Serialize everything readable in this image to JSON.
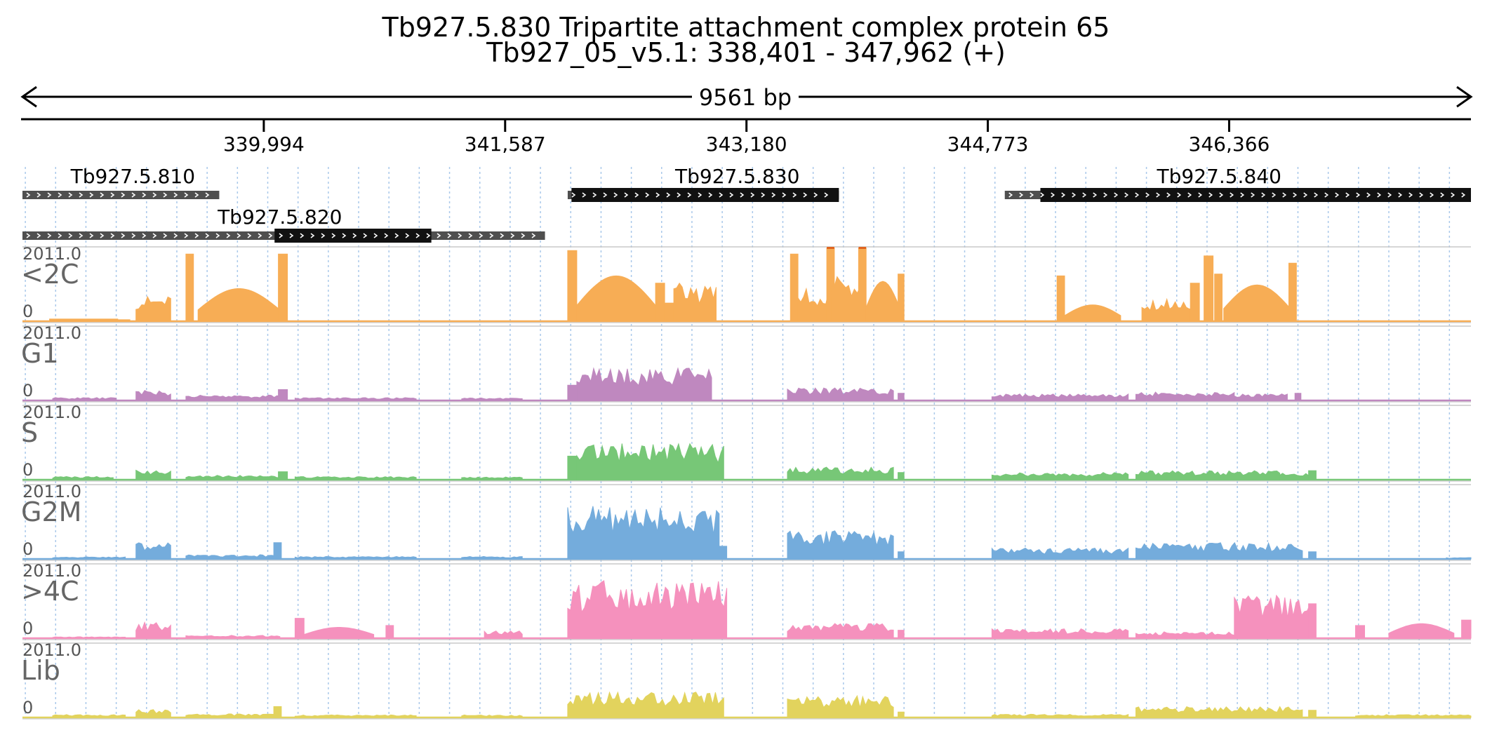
{
  "header": {
    "title": "Tb927.5.830  Tripartite attachment complex protein 65",
    "subtitle": "Tb927_05_v5.1: 338,401 - 347,962 (+)",
    "span_label": "9561 bp"
  },
  "chart_data": {
    "type": "area",
    "region": {
      "chrom": "Tb927_05_v5.1",
      "start": 338401,
      "end": 347962,
      "strand": "+"
    },
    "axis": {
      "ticks": [
        {
          "pos": 339994,
          "label": "339,994"
        },
        {
          "pos": 341587,
          "label": "341,587"
        },
        {
          "pos": 343180,
          "label": "343,180"
        },
        {
          "pos": 344773,
          "label": "344,773"
        },
        {
          "pos": 346366,
          "label": "346,366"
        }
      ]
    },
    "genes": [
      {
        "name": "Tb927.5.810",
        "row": 0,
        "label_pos": 339130,
        "transcript": [
          338401,
          339700
        ],
        "cds": []
      },
      {
        "name": "Tb927.5.820",
        "row": 1,
        "label_pos": 340100,
        "transcript": [
          338401,
          341850
        ],
        "cds": [
          340065,
          341100
        ]
      },
      {
        "name": "Tb927.5.830",
        "row": 0,
        "label_pos": 343120,
        "transcript": [
          342000,
          343790
        ],
        "cds": [
          342025,
          343790
        ]
      },
      {
        "name": "Tb927.5.840",
        "row": 0,
        "label_pos": 346300,
        "transcript": [
          344885,
          347962
        ],
        "cds": [
          345120,
          348100
        ]
      }
    ],
    "tracks": [
      {
        "name": "<2C",
        "color": "#f7ad55",
        "ymin": 0,
        "ymax": 2011.0,
        "segments": [
          {
            "start": 338580,
            "end": 339030,
            "level": 60
          },
          {
            "start": 338950,
            "end": 339110,
            "level": 40
          },
          {
            "start": 339150,
            "end": 339380,
            "level": 700,
            "shape": "bumpy"
          },
          {
            "start": 339480,
            "end": 339530,
            "level": 1850,
            "shape": "flat"
          },
          {
            "start": 339560,
            "end": 340100,
            "level": 900,
            "shape": "arch"
          },
          {
            "start": 340090,
            "end": 340150,
            "level": 1850,
            "shape": "flat"
          },
          {
            "start": 342000,
            "end": 342060,
            "level": 1950,
            "shape": "flat"
          },
          {
            "start": 342060,
            "end": 342580,
            "level": 1250,
            "shape": "arch"
          },
          {
            "start": 342580,
            "end": 342640,
            "level": 1050,
            "shape": "flat"
          },
          {
            "start": 342640,
            "end": 342700,
            "level": 500,
            "shape": "flat"
          },
          {
            "start": 342700,
            "end": 342980,
            "level": 1050,
            "shape": "bumpy"
          },
          {
            "start": 343470,
            "end": 343520,
            "level": 1850,
            "shape": "flat"
          },
          {
            "start": 343520,
            "end": 343740,
            "level": 900,
            "shape": "bumpy"
          },
          {
            "start": 343710,
            "end": 343760,
            "level": 2011,
            "shape": "flat"
          },
          {
            "start": 343740,
            "end": 343930,
            "level": 1300,
            "shape": "bumpy"
          },
          {
            "start": 343920,
            "end": 343970,
            "level": 2011,
            "shape": "flat"
          },
          {
            "start": 343970,
            "end": 344190,
            "level": 1100,
            "shape": "arch"
          },
          {
            "start": 344180,
            "end": 344220,
            "level": 1300,
            "shape": "flat"
          },
          {
            "start": 345230,
            "end": 345280,
            "level": 1250,
            "shape": "flat"
          },
          {
            "start": 345280,
            "end": 345650,
            "level": 450,
            "shape": "arch"
          },
          {
            "start": 345790,
            "end": 346120,
            "level": 650,
            "shape": "bumpy"
          },
          {
            "start": 346110,
            "end": 346170,
            "level": 1050,
            "shape": "flat"
          },
          {
            "start": 346200,
            "end": 346260,
            "level": 1800,
            "shape": "flat"
          },
          {
            "start": 346270,
            "end": 346320,
            "level": 1300,
            "shape": "flat"
          },
          {
            "start": 346330,
            "end": 346770,
            "level": 1000,
            "shape": "arch"
          },
          {
            "start": 346760,
            "end": 346810,
            "level": 1600,
            "shape": "flat"
          }
        ]
      },
      {
        "name": "G1",
        "color": "#bf88bf",
        "ymin": 0,
        "ymax": 2011.0,
        "segments": [
          {
            "start": 338600,
            "end": 339020,
            "level": 80,
            "shape": "bumpy"
          },
          {
            "start": 339150,
            "end": 339380,
            "level": 280,
            "shape": "bumpy"
          },
          {
            "start": 339480,
            "end": 340100,
            "level": 150,
            "shape": "bumpy"
          },
          {
            "start": 340090,
            "end": 340150,
            "level": 300,
            "shape": "flat"
          },
          {
            "start": 340200,
            "end": 341000,
            "level": 80,
            "shape": "bumpy"
          },
          {
            "start": 341300,
            "end": 341700,
            "level": 70,
            "shape": "bumpy"
          },
          {
            "start": 342000,
            "end": 342060,
            "level": 420,
            "shape": "flat"
          },
          {
            "start": 342060,
            "end": 342950,
            "level": 900,
            "shape": "bumpy"
          },
          {
            "start": 343450,
            "end": 344150,
            "level": 350,
            "shape": "bumpy"
          },
          {
            "start": 344180,
            "end": 344220,
            "level": 200,
            "shape": "flat"
          },
          {
            "start": 344800,
            "end": 345700,
            "level": 180,
            "shape": "bumpy"
          },
          {
            "start": 345750,
            "end": 346400,
            "level": 230,
            "shape": "bumpy"
          },
          {
            "start": 346400,
            "end": 346750,
            "level": 180,
            "shape": "bumpy"
          },
          {
            "start": 346800,
            "end": 346840,
            "level": 200,
            "shape": "flat"
          }
        ]
      },
      {
        "name": "S",
        "color": "#77c777",
        "ymin": 0,
        "ymax": 2011.0,
        "segments": [
          {
            "start": 338600,
            "end": 339000,
            "level": 90,
            "shape": "bumpy"
          },
          {
            "start": 339150,
            "end": 339380,
            "level": 280,
            "shape": "bumpy"
          },
          {
            "start": 339480,
            "end": 340100,
            "level": 120,
            "shape": "bumpy"
          },
          {
            "start": 340090,
            "end": 340150,
            "level": 220,
            "shape": "flat"
          },
          {
            "start": 340200,
            "end": 341000,
            "level": 90,
            "shape": "bumpy"
          },
          {
            "start": 341300,
            "end": 341700,
            "level": 80,
            "shape": "bumpy"
          },
          {
            "start": 342000,
            "end": 342060,
            "level": 650,
            "shape": "flat"
          },
          {
            "start": 342060,
            "end": 343030,
            "level": 1000,
            "shape": "bumpy"
          },
          {
            "start": 343450,
            "end": 344150,
            "level": 350,
            "shape": "bumpy"
          },
          {
            "start": 344180,
            "end": 344220,
            "level": 200,
            "shape": "flat"
          },
          {
            "start": 344800,
            "end": 345700,
            "level": 200,
            "shape": "bumpy"
          },
          {
            "start": 345750,
            "end": 346700,
            "level": 250,
            "shape": "bumpy"
          },
          {
            "start": 346700,
            "end": 346930,
            "level": 200,
            "shape": "bumpy"
          },
          {
            "start": 346890,
            "end": 346940,
            "level": 250,
            "shape": "flat"
          }
        ]
      },
      {
        "name": "G2M",
        "color": "#74acdc",
        "ymin": 0,
        "ymax": 2011.0,
        "segments": [
          {
            "start": 338600,
            "end": 339080,
            "level": 60,
            "shape": "bumpy"
          },
          {
            "start": 339150,
            "end": 339380,
            "level": 450,
            "shape": "bumpy"
          },
          {
            "start": 339480,
            "end": 340100,
            "level": 120,
            "shape": "bumpy"
          },
          {
            "start": 340060,
            "end": 340110,
            "level": 450,
            "shape": "flat"
          },
          {
            "start": 340200,
            "end": 341000,
            "level": 70,
            "shape": "bumpy"
          },
          {
            "start": 341300,
            "end": 341700,
            "level": 70,
            "shape": "bumpy"
          },
          {
            "start": 342000,
            "end": 343000,
            "level": 1500,
            "shape": "bumpy"
          },
          {
            "start": 343000,
            "end": 343050,
            "level": 350,
            "shape": "flat"
          },
          {
            "start": 343450,
            "end": 344150,
            "level": 800,
            "shape": "bumpy"
          },
          {
            "start": 344180,
            "end": 344220,
            "level": 200,
            "shape": "flat"
          },
          {
            "start": 344800,
            "end": 345700,
            "level": 300,
            "shape": "bumpy"
          },
          {
            "start": 345750,
            "end": 346850,
            "level": 450,
            "shape": "bumpy"
          },
          {
            "start": 346890,
            "end": 346940,
            "level": 200,
            "shape": "flat"
          },
          {
            "start": 347800,
            "end": 347962,
            "level": 40,
            "shape": "bumpy"
          }
        ]
      },
      {
        "name": ">4C",
        "color": "#f591bd",
        "ymin": 0,
        "ymax": 2011.0,
        "segments": [
          {
            "start": 338600,
            "end": 339080,
            "level": 40,
            "shape": "bumpy"
          },
          {
            "start": 339150,
            "end": 339380,
            "level": 450,
            "shape": "bumpy"
          },
          {
            "start": 339480,
            "end": 340100,
            "level": 80,
            "shape": "bumpy"
          },
          {
            "start": 340200,
            "end": 340260,
            "level": 550,
            "shape": "flat"
          },
          {
            "start": 340260,
            "end": 340720,
            "level": 300,
            "shape": "arch"
          },
          {
            "start": 340800,
            "end": 340850,
            "level": 350,
            "shape": "flat"
          },
          {
            "start": 341450,
            "end": 341700,
            "level": 200,
            "shape": "bumpy"
          },
          {
            "start": 342000,
            "end": 343050,
            "level": 1600,
            "shape": "bumpy"
          },
          {
            "start": 343450,
            "end": 344150,
            "level": 420,
            "shape": "bumpy"
          },
          {
            "start": 344180,
            "end": 344220,
            "level": 220,
            "shape": "flat"
          },
          {
            "start": 344800,
            "end": 345700,
            "level": 260,
            "shape": "bumpy"
          },
          {
            "start": 345750,
            "end": 346420,
            "level": 180,
            "shape": "bumpy"
          },
          {
            "start": 346400,
            "end": 346900,
            "level": 1200,
            "shape": "bumpy"
          },
          {
            "start": 346890,
            "end": 346940,
            "level": 950,
            "shape": "flat"
          },
          {
            "start": 347200,
            "end": 347260,
            "level": 350,
            "shape": "flat"
          },
          {
            "start": 347420,
            "end": 347850,
            "level": 400,
            "shape": "arch"
          },
          {
            "start": 347900,
            "end": 347962,
            "level": 500,
            "shape": "flat"
          }
        ]
      },
      {
        "name": "Lib",
        "color": "#e2d35d",
        "ymin": 0,
        "ymax": 2011.0,
        "segments": [
          {
            "start": 338600,
            "end": 339080,
            "level": 80,
            "shape": "bumpy"
          },
          {
            "start": 339150,
            "end": 339380,
            "level": 220,
            "shape": "bumpy"
          },
          {
            "start": 339480,
            "end": 340100,
            "level": 100,
            "shape": "bumpy"
          },
          {
            "start": 340060,
            "end": 340110,
            "level": 300,
            "shape": "flat"
          },
          {
            "start": 340200,
            "end": 341000,
            "level": 70,
            "shape": "bumpy"
          },
          {
            "start": 341300,
            "end": 341700,
            "level": 70,
            "shape": "bumpy"
          },
          {
            "start": 342000,
            "end": 343030,
            "level": 700,
            "shape": "bumpy"
          },
          {
            "start": 343450,
            "end": 344150,
            "level": 600,
            "shape": "bumpy"
          },
          {
            "start": 344180,
            "end": 344220,
            "level": 150,
            "shape": "flat"
          },
          {
            "start": 344800,
            "end": 345700,
            "level": 90,
            "shape": "bumpy"
          },
          {
            "start": 345750,
            "end": 346850,
            "level": 300,
            "shape": "bumpy"
          },
          {
            "start": 346890,
            "end": 346940,
            "level": 200,
            "shape": "flat"
          },
          {
            "start": 347200,
            "end": 347962,
            "level": 80,
            "shape": "bumpy"
          }
        ]
      }
    ]
  }
}
